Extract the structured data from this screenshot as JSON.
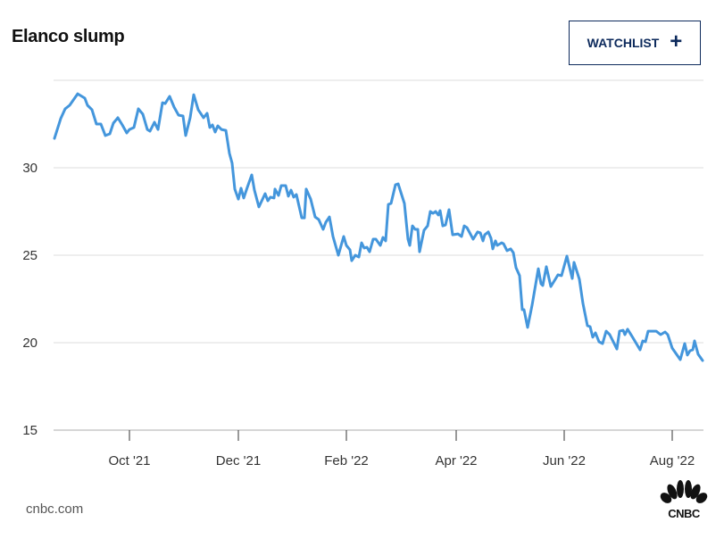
{
  "header": {
    "title": "Elanco slump",
    "watchlist_label": "WATCHLIST",
    "watchlist_icon": "plus-icon"
  },
  "footer": {
    "source": "cnbc.com",
    "logo": "CNBC"
  },
  "colors": {
    "line": "#4496dc",
    "grid": "#dcdcdc",
    "button": "#0d2a5c"
  },
  "chart_data": {
    "type": "line",
    "title": "Elanco slump",
    "xlabel": "",
    "ylabel": "",
    "x_unit": "days since Oct 1 2021",
    "ylim": [
      15,
      35
    ],
    "yticks": [
      {
        "v": 15,
        "label": "15"
      },
      {
        "v": 20,
        "label": "20"
      },
      {
        "v": 25,
        "label": "25"
      },
      {
        "v": 30,
        "label": "30"
      },
      {
        "v": 35,
        "label": ""
      }
    ],
    "xticks": [
      {
        "d": 0,
        "label": "Oct '21"
      },
      {
        "d": 61,
        "label": "Dec '21"
      },
      {
        "d": 121.5,
        "label": "Feb '22"
      },
      {
        "d": 183,
        "label": "Apr '22"
      },
      {
        "d": 243.5,
        "label": "Jun '22"
      },
      {
        "d": 304,
        "label": "Aug '22"
      }
    ],
    "grid": true,
    "series": [
      {
        "name": "Elanco",
        "points": [
          [
            -42,
            31.68
          ],
          [
            -38.5,
            32.81
          ],
          [
            -36,
            33.37
          ],
          [
            -33.5,
            33.57
          ],
          [
            -29,
            34.23
          ],
          [
            -25,
            33.98
          ],
          [
            -23.5,
            33.57
          ],
          [
            -21,
            33.32
          ],
          [
            -18.5,
            32.5
          ],
          [
            -16,
            32.5
          ],
          [
            -13.5,
            31.84
          ],
          [
            -11,
            31.94
          ],
          [
            -9,
            32.55
          ],
          [
            -6.5,
            32.86
          ],
          [
            -4,
            32.45
          ],
          [
            -1.5,
            31.99
          ],
          [
            0,
            32.19
          ],
          [
            2.5,
            32.3
          ],
          [
            5,
            33.37
          ],
          [
            7.5,
            33.06
          ],
          [
            10,
            32.19
          ],
          [
            11.5,
            32.09
          ],
          [
            14,
            32.6
          ],
          [
            16,
            32.19
          ],
          [
            18.5,
            33.72
          ],
          [
            20,
            33.67
          ],
          [
            22.5,
            34.08
          ],
          [
            25,
            33.47
          ],
          [
            27.5,
            33.01
          ],
          [
            30,
            32.96
          ],
          [
            31.5,
            31.84
          ],
          [
            34,
            32.86
          ],
          [
            36,
            34.18
          ],
          [
            38.5,
            33.32
          ],
          [
            41.5,
            32.86
          ],
          [
            43.5,
            33.11
          ],
          [
            45,
            32.3
          ],
          [
            46.5,
            32.45
          ],
          [
            48,
            32.04
          ],
          [
            49.5,
            32.4
          ],
          [
            51.5,
            32.19
          ],
          [
            54,
            32.14
          ],
          [
            56,
            30.82
          ],
          [
            57.5,
            30.26
          ],
          [
            59,
            28.78
          ],
          [
            61,
            28.21
          ],
          [
            62.5,
            28.83
          ],
          [
            64,
            28.27
          ],
          [
            66,
            28.88
          ],
          [
            68.5,
            29.59
          ],
          [
            70,
            28.72
          ],
          [
            72.5,
            27.76
          ],
          [
            76,
            28.52
          ],
          [
            77.5,
            28.11
          ],
          [
            79,
            28.32
          ],
          [
            81,
            28.27
          ],
          [
            81.5,
            28.78
          ],
          [
            83.5,
            28.42
          ],
          [
            85,
            28.98
          ],
          [
            87.5,
            28.98
          ],
          [
            89,
            28.37
          ],
          [
            90.5,
            28.72
          ],
          [
            92,
            28.32
          ],
          [
            93.5,
            28.47
          ],
          [
            96.5,
            27.14
          ],
          [
            98,
            27.14
          ],
          [
            99,
            28.78
          ],
          [
            101.5,
            28.21
          ],
          [
            104,
            27.19
          ],
          [
            106,
            27.04
          ],
          [
            108.5,
            26.48
          ],
          [
            110,
            26.89
          ],
          [
            112,
            27.19
          ],
          [
            114,
            26.07
          ],
          [
            117,
            25.0
          ],
          [
            120,
            26.07
          ],
          [
            121.5,
            25.56
          ],
          [
            123.5,
            25.31
          ],
          [
            124.5,
            24.69
          ],
          [
            126.5,
            25.0
          ],
          [
            128.5,
            24.9
          ],
          [
            130,
            25.71
          ],
          [
            131.5,
            25.41
          ],
          [
            133,
            25.46
          ],
          [
            134.5,
            25.2
          ],
          [
            136.5,
            25.92
          ],
          [
            138,
            25.92
          ],
          [
            140.5,
            25.56
          ],
          [
            142,
            26.02
          ],
          [
            143.5,
            25.82
          ],
          [
            145,
            27.91
          ],
          [
            146.5,
            27.96
          ],
          [
            149,
            29.03
          ],
          [
            150.5,
            29.08
          ],
          [
            154,
            27.96
          ],
          [
            156,
            25.92
          ],
          [
            157,
            25.56
          ],
          [
            158.5,
            26.68
          ],
          [
            160,
            26.48
          ],
          [
            161.5,
            26.48
          ],
          [
            162.5,
            25.2
          ],
          [
            165,
            26.43
          ],
          [
            167,
            26.68
          ],
          [
            168.5,
            27.5
          ],
          [
            170,
            27.4
          ],
          [
            171.5,
            27.5
          ],
          [
            173,
            27.3
          ],
          [
            174,
            27.55
          ],
          [
            175.5,
            26.68
          ],
          [
            177,
            26.73
          ],
          [
            179,
            27.6
          ],
          [
            181,
            26.17
          ],
          [
            184,
            26.22
          ],
          [
            186,
            26.07
          ],
          [
            187.5,
            26.68
          ],
          [
            189,
            26.58
          ],
          [
            192.5,
            25.92
          ],
          [
            195,
            26.33
          ],
          [
            196.5,
            26.28
          ],
          [
            198,
            25.82
          ],
          [
            199,
            26.17
          ],
          [
            201,
            26.33
          ],
          [
            202.5,
            25.97
          ],
          [
            203.5,
            25.36
          ],
          [
            205,
            25.82
          ],
          [
            206,
            25.56
          ],
          [
            208.5,
            25.71
          ],
          [
            209.5,
            25.66
          ],
          [
            211.5,
            25.26
          ],
          [
            213.5,
            25.36
          ],
          [
            215,
            25.15
          ],
          [
            216.5,
            24.29
          ],
          [
            218.5,
            23.83
          ],
          [
            220,
            21.89
          ],
          [
            221,
            21.89
          ],
          [
            223,
            20.87
          ],
          [
            225.5,
            22.14
          ],
          [
            229,
            24.23
          ],
          [
            230.5,
            23.37
          ],
          [
            231.5,
            23.27
          ],
          [
            233.5,
            24.34
          ],
          [
            236,
            23.21
          ],
          [
            238.5,
            23.62
          ],
          [
            240,
            23.88
          ],
          [
            242,
            23.83
          ],
          [
            245,
            24.95
          ],
          [
            248,
            23.67
          ],
          [
            249,
            24.59
          ],
          [
            252,
            23.62
          ],
          [
            254,
            22.24
          ],
          [
            256.5,
            20.97
          ],
          [
            258,
            20.92
          ],
          [
            259.5,
            20.31
          ],
          [
            261,
            20.56
          ],
          [
            263,
            20.05
          ],
          [
            265,
            19.95
          ],
          [
            267,
            20.66
          ],
          [
            269,
            20.46
          ],
          [
            271,
            20.05
          ],
          [
            273,
            19.64
          ],
          [
            274.5,
            20.66
          ],
          [
            276.5,
            20.71
          ],
          [
            277.5,
            20.46
          ],
          [
            279,
            20.77
          ],
          [
            281.5,
            20.36
          ],
          [
            286,
            19.59
          ],
          [
            287.5,
            20.1
          ],
          [
            289,
            20.05
          ],
          [
            290.5,
            20.66
          ],
          [
            295,
            20.66
          ],
          [
            297.5,
            20.46
          ],
          [
            300,
            20.61
          ],
          [
            301.5,
            20.46
          ],
          [
            304,
            19.69
          ],
          [
            308.5,
            19.03
          ],
          [
            311,
            19.95
          ],
          [
            312.5,
            19.29
          ],
          [
            314,
            19.54
          ],
          [
            315.5,
            19.59
          ],
          [
            316.5,
            20.1
          ],
          [
            318.5,
            19.34
          ],
          [
            321,
            18.98
          ]
        ]
      }
    ]
  }
}
